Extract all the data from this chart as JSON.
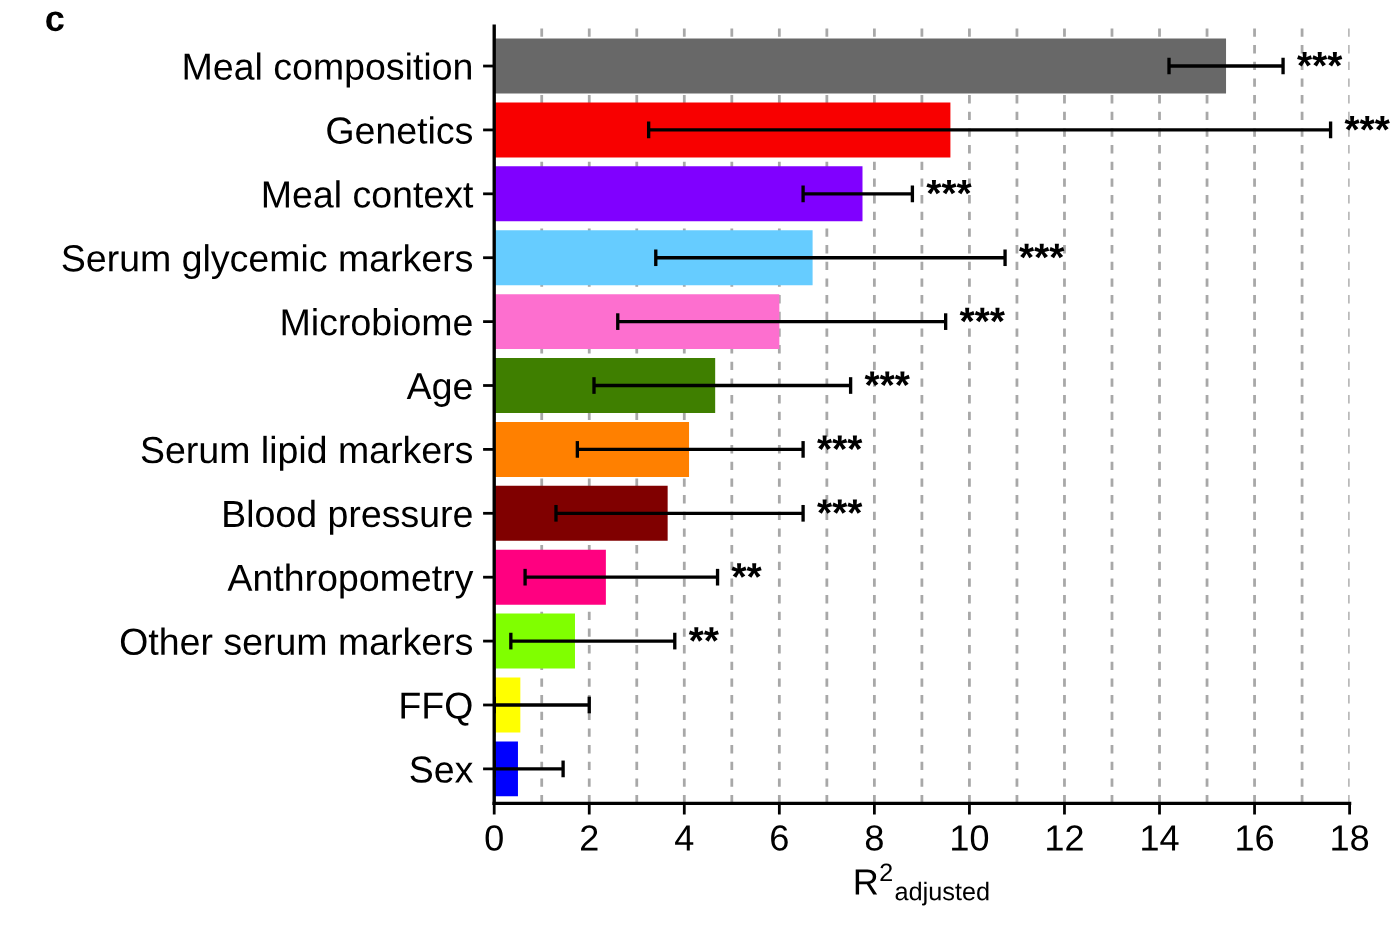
{
  "chart_data": {
    "type": "bar",
    "orientation": "horizontal",
    "title": "c",
    "xlabel": "R$^{2}$$_{adjusted}$",
    "categories": [
      "Meal composition",
      "Genetics",
      "Meal context",
      "Serum glycemic markers",
      "Microbiome",
      "Age",
      "Serum lipid markers",
      "Blood pressure",
      "Anthropometry",
      "Other serum markers",
      "FFQ",
      "Sex"
    ],
    "values": [
      15.4,
      9.6,
      7.75,
      6.7,
      6.0,
      4.65,
      4.1,
      3.65,
      2.35,
      1.7,
      0.55,
      0.5
    ],
    "colors": [
      "#686868",
      "#f80000",
      "#8000ff",
      "#66ccff",
      "#fd6fcf",
      "#3f7f00",
      "#ff8000",
      "#800000",
      "#ff0080",
      "#80ff00",
      "#ffff00",
      "#0000ff"
    ],
    "errors": [
      [
        14.2,
        16.6
      ],
      [
        3.25,
        17.6
      ],
      [
        6.5,
        8.8
      ],
      [
        3.4,
        10.75
      ],
      [
        2.6,
        9.5
      ],
      [
        2.1,
        7.5
      ],
      [
        1.75,
        6.5
      ],
      [
        1.3,
        6.5
      ],
      [
        0.65,
        4.7
      ],
      [
        0.35,
        3.8
      ],
      [
        0,
        2.0
      ],
      [
        0,
        1.45
      ]
    ],
    "xlim": [
      0,
      18
    ],
    "xticks": [
      0,
      {
        "value": 1,
        "label": null
      },
      2,
      {
        "value": 3,
        "label": null
      },
      4,
      {
        "value": 5,
        "label": null
      },
      6,
      {
        "value": 7,
        "label": null
      },
      8,
      {
        "value": 9,
        "label": null
      },
      10,
      {
        "value": 11,
        "label": null
      },
      12,
      {
        "value": 13,
        "label": null
      },
      14,
      {
        "value": 15,
        "label": null
      },
      16,
      {
        "value": 17,
        "label": null
      },
      18
    ],
    "grid": "x",
    "annotations": [
      {
        "text": "***",
        "x": 16.6,
        "y": "Meal composition"
      },
      {
        "text": "***",
        "x": 17.6,
        "y": "Genetics"
      },
      {
        "text": "***",
        "x": 8.8,
        "y": "Meal context"
      },
      {
        "text": "***",
        "x": 10.75,
        "y": "Serum glycemic markers"
      },
      {
        "text": "***",
        "x": 9.5,
        "y": "Microbiome"
      },
      {
        "text": "***",
        "x": 7.5,
        "y": "Age"
      },
      {
        "text": "***",
        "x": 6.5,
        "y": "Serum lipid markers"
      },
      {
        "text": "***",
        "x": 6.5,
        "y": "Blood pressure"
      },
      {
        "text": "**",
        "x": 4.7,
        "y": "Anthropometry"
      },
      {
        "text": "**",
        "x": 3.8,
        "y": "Other serum markers"
      }
    ]
  }
}
